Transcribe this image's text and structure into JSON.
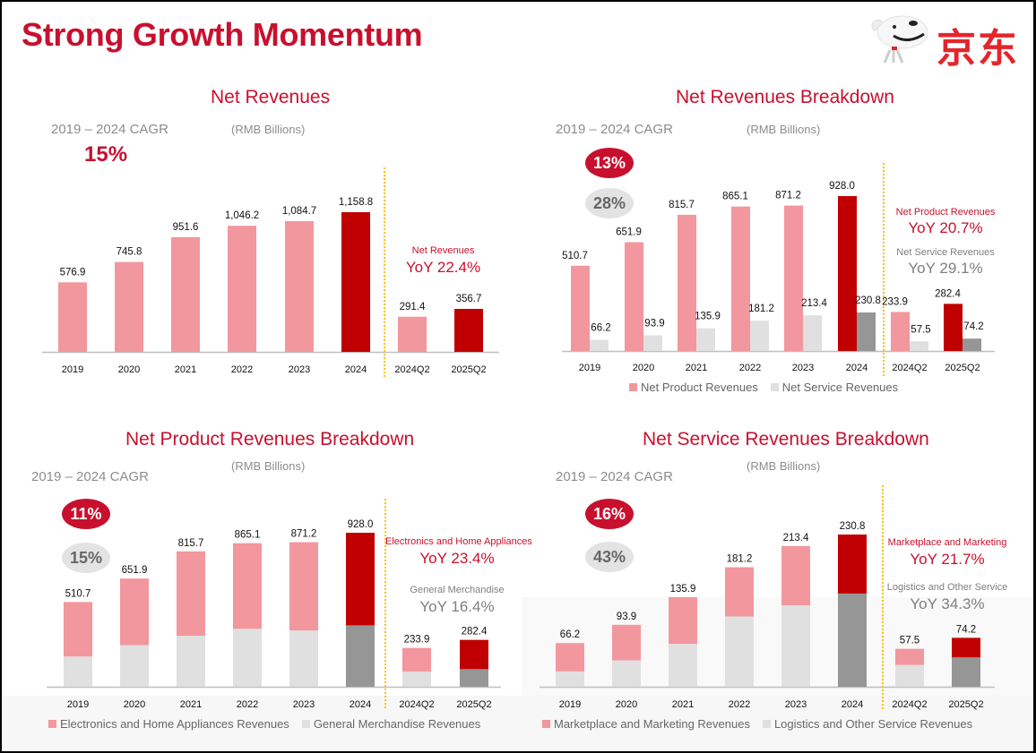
{
  "page": {
    "title": "Strong Growth Momentum",
    "logo_text": "京东",
    "logo_icon": "jd-dog-mascot-icon"
  },
  "colors": {
    "brand_red": "#c8102e",
    "pink": "#f2979e",
    "dark_red": "#c00000",
    "light_gray": "#e0e0e0",
    "dark_gray": "#969696",
    "divider_yellow": "#ffc000"
  },
  "panels": {
    "net_revenues": {
      "title": "Net Revenues",
      "unit": "(RMB Billions)",
      "cagr_label": "2019 – 2024 CAGR",
      "cagr_value": "15%",
      "yoy_label": "Net Revenues",
      "yoy_value": "YoY 22.4%"
    },
    "breakdown": {
      "title": "Net Revenues Breakdown",
      "unit": "(RMB Billions)",
      "cagr_label": "2019 – 2024 CAGR",
      "cagr_primary": "13%",
      "cagr_secondary": "28%",
      "yoy_primary_label": "Net Product Revenues",
      "yoy_primary_value": "YoY 20.7%",
      "yoy_secondary_label": "Net Service Revenues",
      "yoy_secondary_value": "YoY 29.1%",
      "legend": [
        "Net Product Revenues",
        "Net Service Revenues"
      ]
    },
    "product": {
      "title": "Net Product Revenues Breakdown",
      "unit": "(RMB Billions)",
      "cagr_label": "2019 – 2024 CAGR",
      "cagr_primary": "11%",
      "cagr_secondary": "15%",
      "yoy_primary_label": "Electronics and Home Appliances",
      "yoy_primary_value": "YoY 23.4%",
      "yoy_secondary_label": "General Merchandise",
      "yoy_secondary_value": "YoY 16.4%",
      "legend": [
        "Electronics and Home Appliances Revenues",
        "General Merchandise Revenues"
      ]
    },
    "service": {
      "title": "Net Service Revenues Breakdown",
      "unit": "(RMB Billions)",
      "cagr_label": "2019 – 2024 CAGR",
      "cagr_primary": "16%",
      "cagr_secondary": "43%",
      "yoy_primary_label": "Marketplace and Marketing",
      "yoy_primary_value": "YoY 21.7%",
      "yoy_secondary_label": "Logistics and Other Service",
      "yoy_secondary_value": "YoY 34.3%",
      "legend": [
        "Marketplace and Marketing Revenues",
        "Logistics and Other Service Revenues"
      ]
    }
  },
  "chart_data": [
    {
      "type": "bar",
      "title": "Net Revenues",
      "ylabel": "RMB Billions",
      "categories": [
        "2019",
        "2020",
        "2021",
        "2022",
        "2023",
        "2024",
        "2024Q2",
        "2025Q2"
      ],
      "values": [
        576.9,
        745.8,
        951.6,
        1046.2,
        1084.7,
        1158.8,
        291.4,
        356.7
      ],
      "labels": [
        "576.9",
        "745.8",
        "951.6",
        "1,046.2",
        "1,084.7",
        "1,158.8",
        "291.4",
        "356.7"
      ],
      "highlight": [
        "2024",
        "2025Q2"
      ],
      "divider_after": "2024",
      "grid": false
    },
    {
      "type": "bar",
      "title": "Net Revenues Breakdown",
      "ylabel": "RMB Billions",
      "categories": [
        "2019",
        "2020",
        "2021",
        "2022",
        "2023",
        "2024",
        "2024Q2",
        "2025Q2"
      ],
      "series": [
        {
          "name": "Net Product Revenues",
          "values": [
            510.7,
            651.9,
            815.7,
            865.1,
            871.2,
            928.0,
            233.9,
            282.4
          ]
        },
        {
          "name": "Net Service Revenues",
          "values": [
            66.2,
            93.9,
            135.9,
            181.2,
            213.4,
            230.8,
            57.5,
            74.2
          ]
        }
      ],
      "highlight": [
        "2024",
        "2025Q2"
      ],
      "divider_after": "2024",
      "legend": "bottom",
      "grid": false
    },
    {
      "type": "bar",
      "stacked": true,
      "title": "Net Product Revenues Breakdown",
      "ylabel": "RMB Billions",
      "categories": [
        "2019",
        "2020",
        "2021",
        "2022",
        "2023",
        "2024",
        "2024Q2",
        "2025Q2"
      ],
      "totals": [
        510.7,
        651.9,
        815.7,
        865.1,
        871.2,
        928.0,
        233.9,
        282.4
      ],
      "series": [
        {
          "name": "General Merchandise Revenues",
          "values": [
            182,
            251,
            307,
            349,
            339,
            370,
            91,
            106
          ]
        },
        {
          "name": "Electronics and Home Appliances Revenues",
          "values": [
            328.7,
            400.9,
            508.7,
            516.1,
            532.2,
            558.0,
            142.9,
            176.4
          ]
        }
      ],
      "highlight": [
        "2024",
        "2025Q2"
      ],
      "divider_after": "2024",
      "legend": "bottom",
      "grid": false
    },
    {
      "type": "bar",
      "stacked": true,
      "title": "Net Service Revenues Breakdown",
      "ylabel": "RMB Billions",
      "categories": [
        "2019",
        "2020",
        "2021",
        "2022",
        "2023",
        "2024",
        "2024Q2",
        "2025Q2"
      ],
      "totals": [
        66.2,
        93.9,
        135.9,
        181.2,
        213.4,
        230.8,
        57.5,
        74.2
      ],
      "series": [
        {
          "name": "Logistics and Other Service Revenues",
          "values": [
            23.3,
            40.0,
            65.0,
            106.6,
            123.5,
            141.3,
            33.1,
            44.5
          ]
        },
        {
          "name": "Marketplace and Marketing Revenues",
          "values": [
            42.9,
            53.9,
            70.9,
            74.6,
            89.9,
            89.5,
            24.4,
            29.7
          ]
        }
      ],
      "highlight": [
        "2024",
        "2025Q2"
      ],
      "divider_after": "2024",
      "legend": "bottom",
      "grid": false
    }
  ]
}
